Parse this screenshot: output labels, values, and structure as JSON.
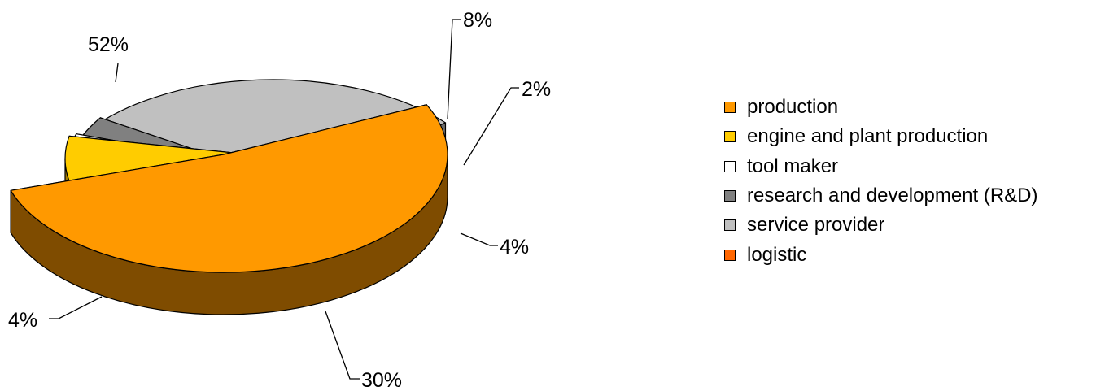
{
  "chart_data": {
    "type": "pie",
    "three_d": true,
    "exploded": true,
    "categories": [
      "production",
      "engine and plant production",
      "tool maker",
      "research and development (R&D)",
      "service provider",
      "logistic"
    ],
    "values": [
      52,
      8,
      2,
      4,
      30,
      4
    ],
    "data_labels": [
      "52%",
      "8%",
      "2%",
      "4%",
      "30%",
      "4%"
    ],
    "colors": [
      "#FF9900",
      "#FFCC00",
      "#FFFFFF",
      "#808080",
      "#C0C0C0",
      "#FF6600"
    ],
    "side_colors": [
      "#7F4C00",
      "#A07B00",
      "#B8B8B8",
      "#404040",
      "#6B6B6B",
      "#7F3300"
    ],
    "legend_position": "right"
  }
}
